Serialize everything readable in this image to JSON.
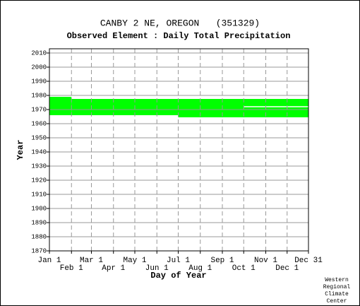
{
  "chart_data": {
    "type": "coverage",
    "title": "CANBY 2 NE, OREGON   (351329)",
    "subtitle": "Observed Element : Daily Total Precipitation",
    "xlabel": "Day of Year",
    "ylabel": "Year",
    "color": "#00ff00",
    "gap_color": "#ffffff",
    "xlim": [
      1,
      365
    ],
    "ylim": [
      1870,
      2013
    ],
    "xticks": [
      {
        "value": 1,
        "label": "Jan 1"
      },
      {
        "value": 32,
        "label": "Feb 1"
      },
      {
        "value": 60,
        "label": "Mar 1"
      },
      {
        "value": 91,
        "label": "Apr 1"
      },
      {
        "value": 121,
        "label": "May 1"
      },
      {
        "value": 152,
        "label": "Jun 1"
      },
      {
        "value": 182,
        "label": "Jul 1"
      },
      {
        "value": 213,
        "label": "Aug 1"
      },
      {
        "value": 244,
        "label": "Sep 1"
      },
      {
        "value": 274,
        "label": "Oct 1"
      },
      {
        "value": 305,
        "label": "Nov 1"
      },
      {
        "value": 335,
        "label": "Dec 1"
      },
      {
        "value": 365,
        "label": "Dec 31"
      }
    ],
    "yticks": [
      1870,
      1880,
      1890,
      1900,
      1910,
      1920,
      1930,
      1940,
      1950,
      1960,
      1970,
      1980,
      1990,
      2000,
      2010
    ],
    "coverage": [
      {
        "day_start": 1,
        "day_end": 32,
        "year_start": 1966,
        "year_end": 1979
      },
      {
        "day_start": 32,
        "day_end": 182,
        "year_start": 1966,
        "year_end": 1977.5
      },
      {
        "day_start": 182,
        "day_end": 365,
        "year_start": 1964.5,
        "year_end": 1977.5
      }
    ],
    "gaps": [
      {
        "day_start": 274,
        "day_end": 365,
        "year": 1972
      }
    ],
    "credit": [
      "Western",
      "Regional",
      "Climate",
      "Center"
    ]
  }
}
